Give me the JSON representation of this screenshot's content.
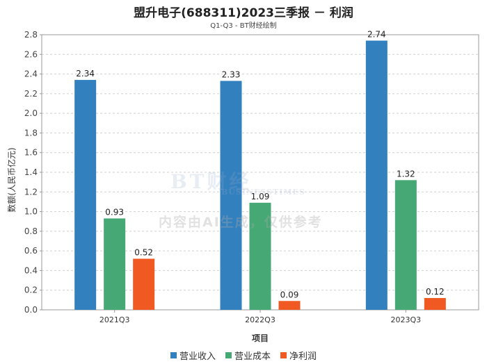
{
  "chart_data": {
    "type": "bar",
    "title": "盟升电子(688311)2023三季报 － 利润",
    "subtitle": "Q1-Q3 - BT财经绘制",
    "xlabel": "项目",
    "ylabel": "数额(人民币亿元)",
    "categories": [
      "2021Q3",
      "2022Q3",
      "2023Q3"
    ],
    "series": [
      {
        "name": "营业收入",
        "values": [
          2.34,
          2.33,
          2.74
        ],
        "color": "#3380bf"
      },
      {
        "name": "营业成本",
        "values": [
          0.93,
          1.09,
          1.32
        ],
        "color": "#46a874"
      },
      {
        "name": "净利润",
        "values": [
          0.52,
          0.09,
          0.12
        ],
        "color": "#f05a22"
      }
    ],
    "ylim": [
      0,
      2.8
    ],
    "yticks": [
      "0.0",
      "0.2",
      "0.4",
      "0.6",
      "0.8",
      "1.0",
      "1.2",
      "1.4",
      "1.6",
      "1.8",
      "2.0",
      "2.2",
      "2.4",
      "2.6",
      "2.8"
    ],
    "grid": true,
    "legend_position": "bottom"
  },
  "watermark": {
    "brand": "BT财经",
    "brand_sub": "BUSINESSTIMES",
    "note": "内容由AI生成，仅供参考"
  }
}
